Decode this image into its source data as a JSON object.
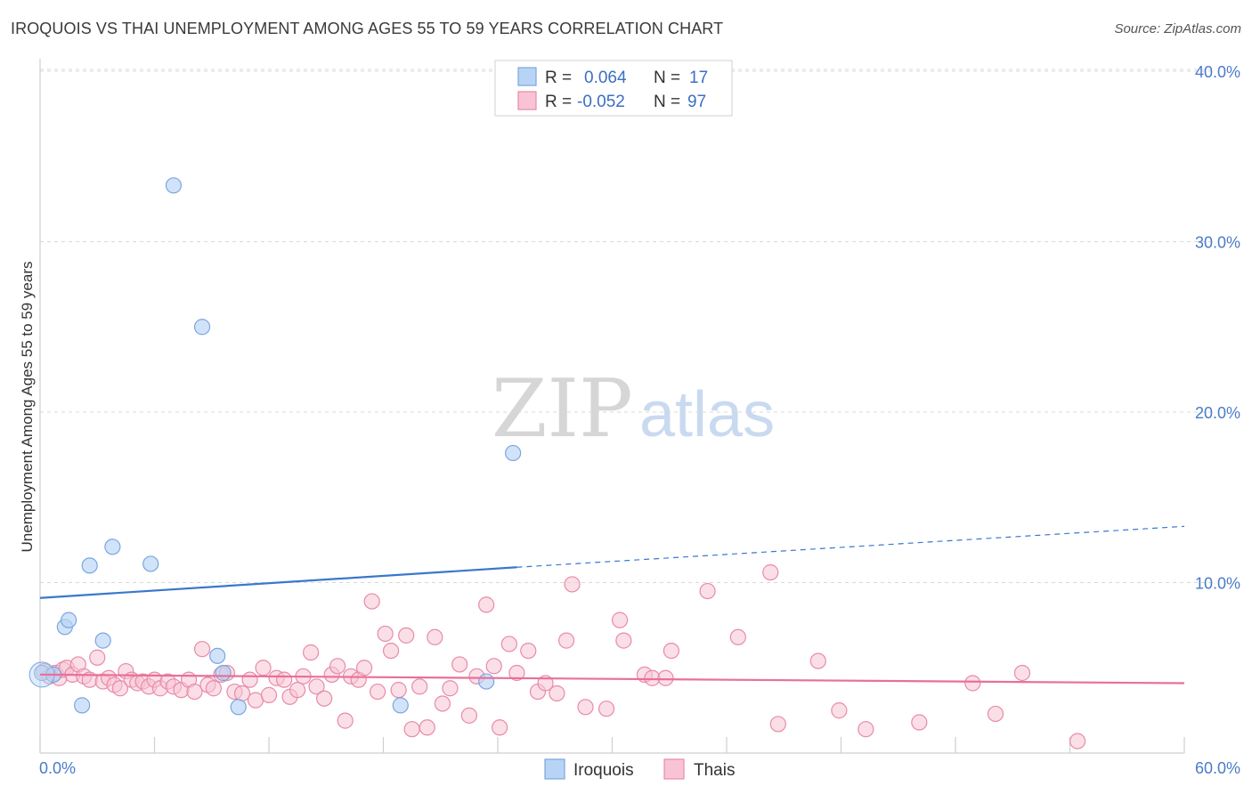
{
  "title": "IROQUOIS VS THAI UNEMPLOYMENT AMONG AGES 55 TO 59 YEARS CORRELATION CHART",
  "source": "Source: ZipAtlas.com",
  "watermark": {
    "zip": "ZIP",
    "atlas": "atlas"
  },
  "colors": {
    "iroquois_fill": "#b8d4f5",
    "iroquois_stroke": "#7aa6e0",
    "iroquois_line": "#3a78cc",
    "thais_fill": "#f8c4d4",
    "thais_stroke": "#e88aaa",
    "thais_line": "#e8709a",
    "grid": "#d8d8d8",
    "tick_label": "#4a7bc8"
  },
  "legend": {
    "r_label": "R =",
    "n_label": "N =",
    "iroquois": {
      "r": "0.064",
      "n": "17"
    },
    "thais": {
      "r": "-0.052",
      "n": "97"
    }
  },
  "chart_data": {
    "type": "scatter",
    "title": "IROQUOIS VS THAI UNEMPLOYMENT AMONG AGES 55 TO 59 YEARS CORRELATION CHART",
    "xlabel": "",
    "ylabel": "Unemployment Among Ages 55 to 59 years",
    "xlim": [
      0,
      60
    ],
    "ylim": [
      0,
      41
    ],
    "x_tick_labels": [
      "0.0%",
      "60.0%"
    ],
    "y_ticks": [
      10,
      20,
      30,
      40
    ],
    "y_tick_labels": [
      "10.0%",
      "20.0%",
      "30.0%",
      "40.0%"
    ],
    "grid": true,
    "legend_position": "top-center",
    "series": [
      {
        "name": "Iroquois",
        "color": "#b8d4f5",
        "r": 0.064,
        "n": 17,
        "trend": {
          "x": [
            0,
            25
          ],
          "y": [
            9.1,
            10.9
          ],
          "dashed_to": [
            60,
            13.3
          ]
        },
        "points": [
          [
            0.1,
            4.7
          ],
          [
            0.7,
            4.6
          ],
          [
            1.3,
            7.4
          ],
          [
            1.5,
            7.8
          ],
          [
            2.2,
            2.8
          ],
          [
            2.6,
            11.0
          ],
          [
            3.3,
            6.6
          ],
          [
            3.8,
            12.1
          ],
          [
            5.8,
            11.1
          ],
          [
            7.0,
            33.3
          ],
          [
            8.5,
            25.0
          ],
          [
            9.3,
            5.7
          ],
          [
            9.6,
            4.7
          ],
          [
            10.4,
            2.7
          ],
          [
            18.9,
            2.8
          ],
          [
            23.4,
            4.2
          ],
          [
            24.8,
            17.6
          ]
        ]
      },
      {
        "name": "Thais",
        "color": "#f8c4d4",
        "r": -0.052,
        "n": 97,
        "trend": {
          "x": [
            0,
            60
          ],
          "y": [
            4.6,
            4.1
          ]
        },
        "points": [
          [
            0.2,
            4.8
          ],
          [
            0.5,
            4.5
          ],
          [
            0.8,
            4.7
          ],
          [
            1.0,
            4.4
          ],
          [
            1.2,
            4.9
          ],
          [
            1.4,
            5.0
          ],
          [
            1.7,
            4.6
          ],
          [
            2.0,
            5.2
          ],
          [
            2.3,
            4.5
          ],
          [
            2.6,
            4.3
          ],
          [
            3.0,
            5.6
          ],
          [
            3.3,
            4.2
          ],
          [
            3.6,
            4.4
          ],
          [
            3.9,
            4.0
          ],
          [
            4.2,
            3.8
          ],
          [
            4.5,
            4.8
          ],
          [
            4.8,
            4.3
          ],
          [
            5.1,
            4.1
          ],
          [
            5.4,
            4.2
          ],
          [
            5.7,
            3.9
          ],
          [
            6.0,
            4.3
          ],
          [
            6.3,
            3.8
          ],
          [
            6.7,
            4.2
          ],
          [
            7.0,
            3.9
          ],
          [
            7.4,
            3.7
          ],
          [
            7.8,
            4.3
          ],
          [
            8.1,
            3.6
          ],
          [
            8.5,
            6.1
          ],
          [
            8.8,
            4.0
          ],
          [
            9.1,
            3.8
          ],
          [
            9.5,
            4.6
          ],
          [
            9.8,
            4.7
          ],
          [
            10.2,
            3.6
          ],
          [
            10.6,
            3.5
          ],
          [
            11.0,
            4.3
          ],
          [
            11.3,
            3.1
          ],
          [
            11.7,
            5.0
          ],
          [
            12.0,
            3.4
          ],
          [
            12.4,
            4.4
          ],
          [
            12.8,
            4.3
          ],
          [
            13.1,
            3.3
          ],
          [
            13.5,
            3.7
          ],
          [
            13.8,
            4.5
          ],
          [
            14.2,
            5.9
          ],
          [
            14.5,
            3.9
          ],
          [
            14.9,
            3.2
          ],
          [
            15.3,
            4.6
          ],
          [
            15.6,
            5.1
          ],
          [
            16.0,
            1.9
          ],
          [
            16.3,
            4.5
          ],
          [
            16.7,
            4.3
          ],
          [
            17.0,
            5.0
          ],
          [
            17.4,
            8.9
          ],
          [
            17.7,
            3.6
          ],
          [
            18.1,
            7.0
          ],
          [
            18.4,
            6.0
          ],
          [
            18.8,
            3.7
          ],
          [
            19.2,
            6.9
          ],
          [
            19.5,
            1.4
          ],
          [
            19.9,
            3.9
          ],
          [
            20.3,
            1.5
          ],
          [
            20.7,
            6.8
          ],
          [
            21.1,
            2.9
          ],
          [
            21.5,
            3.8
          ],
          [
            22.0,
            5.2
          ],
          [
            22.5,
            2.2
          ],
          [
            22.9,
            4.5
          ],
          [
            23.4,
            8.7
          ],
          [
            23.8,
            5.1
          ],
          [
            24.1,
            1.5
          ],
          [
            24.6,
            6.4
          ],
          [
            25.0,
            4.7
          ],
          [
            25.6,
            6.0
          ],
          [
            26.1,
            3.6
          ],
          [
            26.5,
            4.1
          ],
          [
            27.1,
            3.5
          ],
          [
            27.6,
            6.6
          ],
          [
            27.9,
            9.9
          ],
          [
            28.6,
            2.7
          ],
          [
            29.7,
            2.6
          ],
          [
            30.4,
            7.8
          ],
          [
            30.6,
            6.6
          ],
          [
            31.7,
            4.6
          ],
          [
            32.1,
            4.4
          ],
          [
            32.8,
            4.4
          ],
          [
            33.1,
            6.0
          ],
          [
            35.0,
            9.5
          ],
          [
            36.6,
            6.8
          ],
          [
            38.3,
            10.6
          ],
          [
            38.7,
            1.7
          ],
          [
            40.8,
            5.4
          ],
          [
            41.9,
            2.5
          ],
          [
            43.3,
            1.4
          ],
          [
            46.1,
            1.8
          ],
          [
            48.9,
            4.1
          ],
          [
            50.1,
            2.3
          ],
          [
            51.5,
            4.7
          ],
          [
            54.4,
            0.7
          ]
        ]
      }
    ],
    "bottom_legend": [
      "Iroquois",
      "Thais"
    ]
  }
}
